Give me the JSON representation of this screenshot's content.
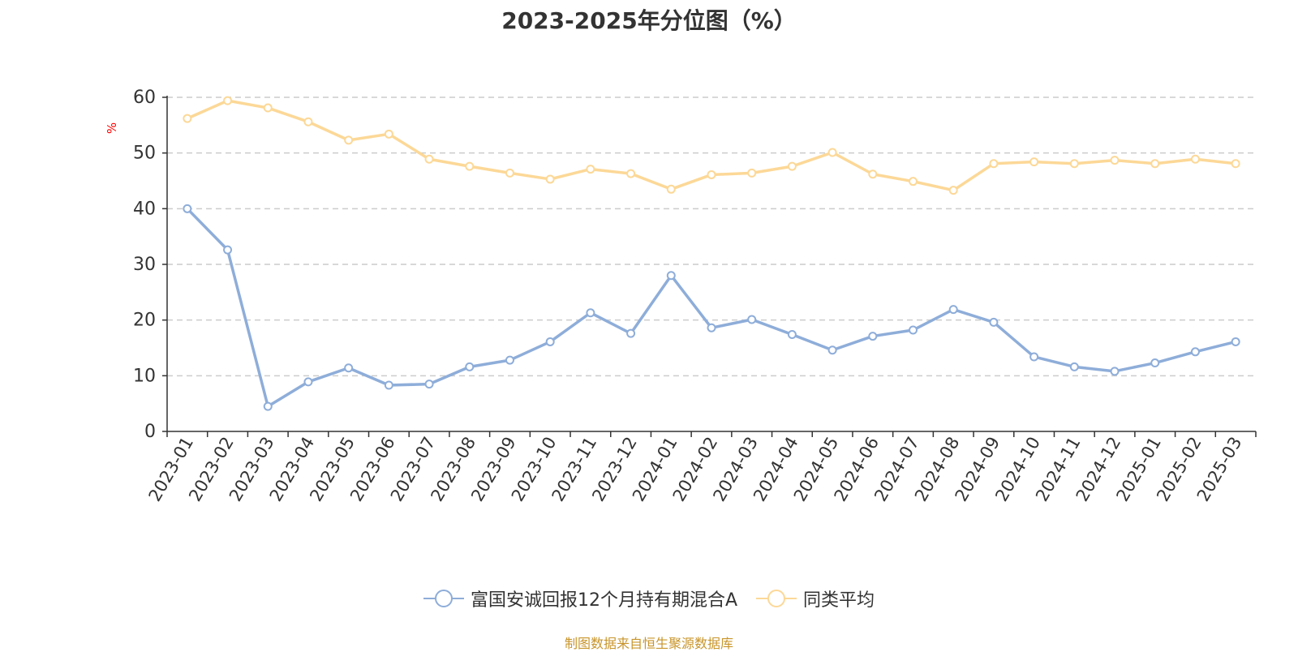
{
  "chart_data": {
    "type": "line",
    "title": "2023-2025年分位图（%）",
    "ylabel": "%",
    "ylim": [
      0,
      60
    ],
    "yticks": [
      0,
      10,
      20,
      30,
      40,
      50,
      60
    ],
    "grid": true,
    "legend_position": "bottom",
    "categories": [
      "2023-01",
      "2023-02",
      "2023-03",
      "2023-04",
      "2023-05",
      "2023-06",
      "2023-07",
      "2023-08",
      "2023-09",
      "2023-10",
      "2023-11",
      "2023-12",
      "2024-01",
      "2024-02",
      "2024-03",
      "2024-04",
      "2024-05",
      "2024-06",
      "2024-07",
      "2024-08",
      "2024-09",
      "2024-10",
      "2024-11",
      "2024-12",
      "2025-01",
      "2025-02",
      "2025-03"
    ],
    "series": [
      {
        "name": "富国安诚回报12个月持有期混合A",
        "color": "#8eadd9",
        "values": [
          40.0,
          32.6,
          4.5,
          8.9,
          11.4,
          8.3,
          8.5,
          11.6,
          12.8,
          16.1,
          21.3,
          17.6,
          28.0,
          18.6,
          20.1,
          17.4,
          14.6,
          17.1,
          18.2,
          21.9,
          19.6,
          13.4,
          11.6,
          10.8,
          12.3,
          14.3,
          16.1
        ]
      },
      {
        "name": "同类平均",
        "color": "#fcd897",
        "values": [
          56.2,
          59.4,
          58.1,
          55.6,
          52.3,
          53.4,
          48.9,
          47.6,
          46.4,
          45.3,
          47.1,
          46.3,
          43.5,
          46.1,
          46.4,
          47.6,
          50.1,
          46.2,
          44.9,
          43.3,
          48.1,
          48.4,
          48.1,
          48.7,
          48.1,
          48.9,
          48.1
        ]
      }
    ],
    "source": "制图数据来自恒生聚源数据库"
  }
}
